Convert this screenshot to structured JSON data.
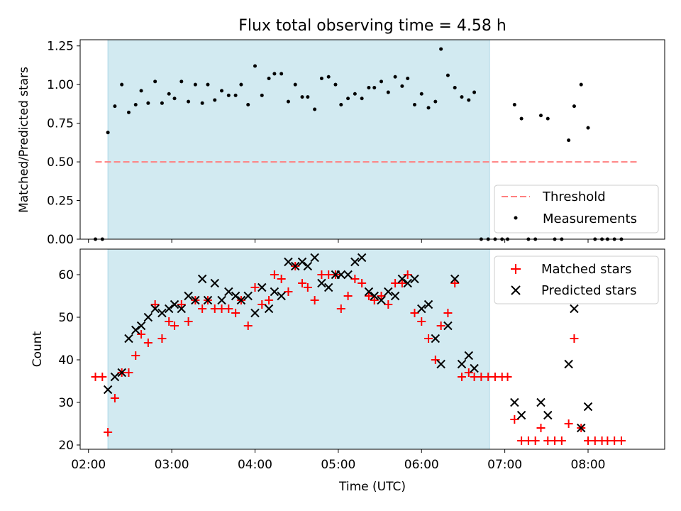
{
  "chart_data": [
    {
      "type": "scatter",
      "title": "Flux total observing time = 4.58 h",
      "xlabel": "",
      "ylabel": "Matched/Predicted stars",
      "ylim": [
        0,
        1.29
      ],
      "yticks": [
        "0.00",
        "0.25",
        "0.50",
        "0.75",
        "1.00",
        "1.25"
      ],
      "xlim_hours": [
        1.9,
        8.92
      ],
      "xticks": [
        "02:00",
        "03:00",
        "04:00",
        "05:00",
        "06:00",
        "07:00",
        "08:00"
      ],
      "shaded_span": [
        "02:14",
        "06:49"
      ],
      "shaded_color": "#add8e6",
      "threshold": {
        "label": "Threshold",
        "value": 0.5,
        "x_range": [
          "02:05",
          "08:35"
        ],
        "color": "#ff7f7f"
      },
      "legend": {
        "placement": "lower right",
        "entries": [
          "Threshold",
          "Measurements"
        ]
      },
      "series": [
        {
          "name": "Measurements",
          "color": "#000000",
          "points": [
            [
              "02:05",
              0.0
            ],
            [
              "02:10",
              0.0
            ],
            [
              "02:14",
              0.69
            ],
            [
              "02:19",
              0.86
            ],
            [
              "02:24",
              1.0
            ],
            [
              "02:29",
              0.82
            ],
            [
              "02:34",
              0.87
            ],
            [
              "02:38",
              0.96
            ],
            [
              "02:43",
              0.88
            ],
            [
              "02:48",
              1.02
            ],
            [
              "02:53",
              0.88
            ],
            [
              "02:58",
              0.94
            ],
            [
              "03:02",
              0.91
            ],
            [
              "03:07",
              1.02
            ],
            [
              "03:12",
              0.89
            ],
            [
              "03:17",
              1.0
            ],
            [
              "03:22",
              0.88
            ],
            [
              "03:26",
              1.0
            ],
            [
              "03:31",
              0.9
            ],
            [
              "03:36",
              0.96
            ],
            [
              "03:41",
              0.93
            ],
            [
              "03:46",
              0.93
            ],
            [
              "03:50",
              1.0
            ],
            [
              "03:55",
              0.87
            ],
            [
              "04:00",
              1.12
            ],
            [
              "04:05",
              0.93
            ],
            [
              "04:10",
              1.04
            ],
            [
              "04:14",
              1.07
            ],
            [
              "04:19",
              1.07
            ],
            [
              "04:24",
              0.89
            ],
            [
              "04:29",
              1.0
            ],
            [
              "04:34",
              0.92
            ],
            [
              "04:38",
              0.92
            ],
            [
              "04:43",
              0.84
            ],
            [
              "04:48",
              1.04
            ],
            [
              "04:53",
              1.05
            ],
            [
              "04:58",
              1.0
            ],
            [
              "05:02",
              0.87
            ],
            [
              "05:07",
              0.91
            ],
            [
              "05:12",
              0.94
            ],
            [
              "05:17",
              0.91
            ],
            [
              "05:22",
              0.98
            ],
            [
              "05:26",
              0.98
            ],
            [
              "05:31",
              1.02
            ],
            [
              "05:36",
              0.95
            ],
            [
              "05:41",
              1.05
            ],
            [
              "05:46",
              0.99
            ],
            [
              "05:50",
              1.04
            ],
            [
              "05:55",
              0.87
            ],
            [
              "06:00",
              0.94
            ],
            [
              "06:05",
              0.85
            ],
            [
              "06:10",
              0.89
            ],
            [
              "06:14",
              1.23
            ],
            [
              "06:19",
              1.06
            ],
            [
              "06:24",
              0.98
            ],
            [
              "06:29",
              0.92
            ],
            [
              "06:34",
              0.9
            ],
            [
              "06:38",
              0.95
            ],
            [
              "06:43",
              0.0
            ],
            [
              "06:48",
              0.0
            ],
            [
              "06:53",
              0.0
            ],
            [
              "06:58",
              0.0
            ],
            [
              "07:02",
              0.0
            ],
            [
              "07:07",
              0.87
            ],
            [
              "07:12",
              0.78
            ],
            [
              "07:17",
              0.0
            ],
            [
              "07:22",
              0.0
            ],
            [
              "07:26",
              0.8
            ],
            [
              "07:31",
              0.78
            ],
            [
              "07:36",
              0.0
            ],
            [
              "07:41",
              0.0
            ],
            [
              "07:46",
              0.64
            ],
            [
              "07:50",
              0.86
            ],
            [
              "07:55",
              1.0
            ],
            [
              "08:00",
              0.72
            ],
            [
              "08:05",
              0.0
            ],
            [
              "08:10",
              0.0
            ],
            [
              "08:14",
              0.0
            ],
            [
              "08:19",
              0.0
            ],
            [
              "08:24",
              0.0
            ]
          ]
        }
      ]
    },
    {
      "type": "scatter",
      "title": "",
      "xlabel": "Time (UTC)",
      "ylabel": "Count",
      "ylim": [
        19,
        66
      ],
      "yticks": [
        "20",
        "30",
        "40",
        "50",
        "60"
      ],
      "xlim_hours": [
        1.9,
        8.92
      ],
      "xticks": [
        "02:00",
        "03:00",
        "04:00",
        "05:00",
        "06:00",
        "07:00",
        "08:00"
      ],
      "shaded_span": [
        "02:14",
        "06:49"
      ],
      "shaded_color": "#add8e6",
      "legend": {
        "placement": "upper right",
        "entries": [
          "Matched stars",
          "Predicted stars"
        ]
      },
      "series": [
        {
          "name": "Matched stars",
          "marker": "plus",
          "color": "#ff0000",
          "points": [
            [
              "02:05",
              36
            ],
            [
              "02:10",
              36
            ],
            [
              "02:14",
              23
            ],
            [
              "02:19",
              31
            ],
            [
              "02:24",
              37
            ],
            [
              "02:29",
              37
            ],
            [
              "02:34",
              41
            ],
            [
              "02:38",
              46
            ],
            [
              "02:43",
              44
            ],
            [
              "02:48",
              53
            ],
            [
              "02:53",
              45
            ],
            [
              "02:58",
              49
            ],
            [
              "03:02",
              48
            ],
            [
              "03:07",
              53
            ],
            [
              "03:12",
              49
            ],
            [
              "03:17",
              54
            ],
            [
              "03:22",
              52
            ],
            [
              "03:26",
              54
            ],
            [
              "03:31",
              52
            ],
            [
              "03:36",
              52
            ],
            [
              "03:41",
              52
            ],
            [
              "03:46",
              51
            ],
            [
              "03:50",
              54
            ],
            [
              "03:55",
              48
            ],
            [
              "04:00",
              57
            ],
            [
              "04:05",
              53
            ],
            [
              "04:10",
              54
            ],
            [
              "04:14",
              60
            ],
            [
              "04:19",
              59
            ],
            [
              "04:24",
              56
            ],
            [
              "04:29",
              62
            ],
            [
              "04:34",
              58
            ],
            [
              "04:38",
              57
            ],
            [
              "04:43",
              54
            ],
            [
              "04:48",
              60
            ],
            [
              "04:53",
              60
            ],
            [
              "04:58",
              60
            ],
            [
              "05:02",
              52
            ],
            [
              "05:07",
              55
            ],
            [
              "05:12",
              59
            ],
            [
              "05:17",
              58
            ],
            [
              "05:22",
              55
            ],
            [
              "05:26",
              54
            ],
            [
              "05:31",
              55
            ],
            [
              "05:36",
              53
            ],
            [
              "05:41",
              58
            ],
            [
              "05:46",
              58
            ],
            [
              "05:50",
              60
            ],
            [
              "05:55",
              51
            ],
            [
              "06:00",
              49
            ],
            [
              "06:05",
              45
            ],
            [
              "06:10",
              40
            ],
            [
              "06:14",
              48
            ],
            [
              "06:19",
              51
            ],
            [
              "06:24",
              58
            ],
            [
              "06:29",
              36
            ],
            [
              "06:34",
              37
            ],
            [
              "06:38",
              36
            ],
            [
              "06:43",
              36
            ],
            [
              "06:48",
              36
            ],
            [
              "06:53",
              36
            ],
            [
              "06:58",
              36
            ],
            [
              "07:02",
              36
            ],
            [
              "07:07",
              26
            ],
            [
              "07:12",
              21
            ],
            [
              "07:17",
              21
            ],
            [
              "07:22",
              21
            ],
            [
              "07:26",
              24
            ],
            [
              "07:31",
              21
            ],
            [
              "07:36",
              21
            ],
            [
              "07:41",
              21
            ],
            [
              "07:46",
              25
            ],
            [
              "07:50",
              45
            ],
            [
              "07:55",
              24
            ],
            [
              "08:00",
              21
            ],
            [
              "08:05",
              21
            ],
            [
              "08:10",
              21
            ],
            [
              "08:14",
              21
            ],
            [
              "08:19",
              21
            ],
            [
              "08:24",
              21
            ]
          ]
        },
        {
          "name": "Predicted stars",
          "marker": "x",
          "color": "#000000",
          "points": [
            [
              "02:14",
              33
            ],
            [
              "02:19",
              36
            ],
            [
              "02:24",
              37
            ],
            [
              "02:29",
              45
            ],
            [
              "02:34",
              47
            ],
            [
              "02:38",
              48
            ],
            [
              "02:43",
              50
            ],
            [
              "02:48",
              52
            ],
            [
              "02:53",
              51
            ],
            [
              "02:58",
              52
            ],
            [
              "03:02",
              53
            ],
            [
              "03:07",
              52
            ],
            [
              "03:12",
              55
            ],
            [
              "03:17",
              54
            ],
            [
              "03:22",
              59
            ],
            [
              "03:26",
              54
            ],
            [
              "03:31",
              58
            ],
            [
              "03:36",
              54
            ],
            [
              "03:41",
              56
            ],
            [
              "03:46",
              55
            ],
            [
              "03:50",
              54
            ],
            [
              "03:55",
              55
            ],
            [
              "04:00",
              51
            ],
            [
              "04:05",
              57
            ],
            [
              "04:10",
              52
            ],
            [
              "04:14",
              56
            ],
            [
              "04:19",
              55
            ],
            [
              "04:24",
              63
            ],
            [
              "04:29",
              62
            ],
            [
              "04:34",
              63
            ],
            [
              "04:38",
              62
            ],
            [
              "04:43",
              64
            ],
            [
              "04:48",
              58
            ],
            [
              "04:53",
              57
            ],
            [
              "04:58",
              60
            ],
            [
              "05:02",
              60
            ],
            [
              "05:07",
              60
            ],
            [
              "05:12",
              63
            ],
            [
              "05:17",
              64
            ],
            [
              "05:22",
              56
            ],
            [
              "05:26",
              55
            ],
            [
              "05:31",
              54
            ],
            [
              "05:36",
              56
            ],
            [
              "05:41",
              55
            ],
            [
              "05:46",
              59
            ],
            [
              "05:50",
              58
            ],
            [
              "05:55",
              59
            ],
            [
              "06:00",
              52
            ],
            [
              "06:05",
              53
            ],
            [
              "06:10",
              45
            ],
            [
              "06:14",
              39
            ],
            [
              "06:19",
              48
            ],
            [
              "06:24",
              59
            ],
            [
              "06:29",
              39
            ],
            [
              "06:34",
              41
            ],
            [
              "06:38",
              38
            ],
            [
              "07:07",
              30
            ],
            [
              "07:12",
              27
            ],
            [
              "07:26",
              30
            ],
            [
              "07:31",
              27
            ],
            [
              "07:46",
              39
            ],
            [
              "07:50",
              52
            ],
            [
              "07:55",
              24
            ],
            [
              "08:00",
              29
            ]
          ]
        }
      ]
    }
  ]
}
